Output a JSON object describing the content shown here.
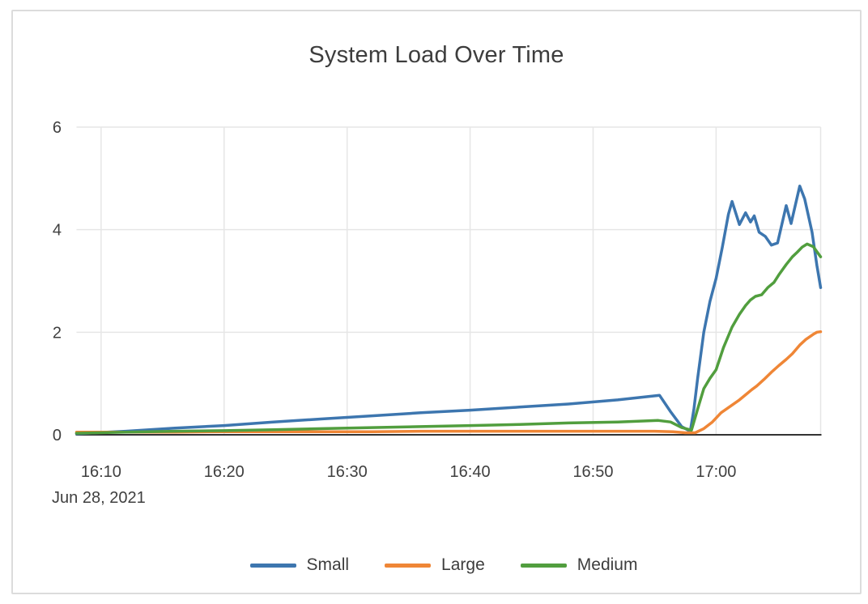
{
  "page": {
    "background": "#ffffff",
    "border_color": "#dcdcdc"
  },
  "colors": {
    "title_text": "#3d3d3d",
    "tick_text": "#3f3f3f",
    "gridline": "#e6e6e6",
    "axis_line": "#333333"
  },
  "chart_data": {
    "type": "line",
    "title": "System Load Over Time",
    "grid": true,
    "legend_position": "bottom",
    "x_axis": {
      "date_label": "Jun 28, 2021",
      "tick_labels": [
        "16:10",
        "16:20",
        "16:30",
        "16:40",
        "16:50",
        "17:00"
      ],
      "tick_minutes": [
        10,
        20,
        30,
        40,
        50,
        60
      ],
      "range_minutes": [
        8,
        68.5
      ],
      "unit": "minutes after 16:00 on Jun 28, 2021"
    },
    "y_axis": {
      "tick_labels": [
        "0",
        "2",
        "4",
        "6"
      ],
      "tick_values": [
        0,
        2,
        4,
        6
      ],
      "range": [
        0,
        6
      ]
    },
    "series": [
      {
        "name": "Small",
        "color": "#3d76af",
        "points": [
          [
            8,
            0.02
          ],
          [
            12,
            0.07
          ],
          [
            16,
            0.13
          ],
          [
            20,
            0.18
          ],
          [
            24,
            0.25
          ],
          [
            28,
            0.31
          ],
          [
            32,
            0.37
          ],
          [
            36,
            0.43
          ],
          [
            40,
            0.48
          ],
          [
            44,
            0.54
          ],
          [
            48,
            0.6
          ],
          [
            52,
            0.68
          ],
          [
            55.4,
            0.77
          ],
          [
            56.3,
            0.45
          ],
          [
            57.2,
            0.16
          ],
          [
            57.9,
            0.07
          ],
          [
            58.2,
            0.5
          ],
          [
            58.5,
            1.1
          ],
          [
            59,
            2.0
          ],
          [
            59.5,
            2.6
          ],
          [
            60,
            3.05
          ],
          [
            60.5,
            3.65
          ],
          [
            61,
            4.3
          ],
          [
            61.3,
            4.55
          ],
          [
            61.9,
            4.1
          ],
          [
            62.4,
            4.33
          ],
          [
            62.8,
            4.15
          ],
          [
            63.1,
            4.27
          ],
          [
            63.5,
            3.95
          ],
          [
            64,
            3.87
          ],
          [
            64.5,
            3.7
          ],
          [
            65,
            3.74
          ],
          [
            65.7,
            4.47
          ],
          [
            66.1,
            4.12
          ],
          [
            66.8,
            4.85
          ],
          [
            67.2,
            4.6
          ],
          [
            67.8,
            3.95
          ],
          [
            68.2,
            3.3
          ],
          [
            68.5,
            2.87
          ]
        ]
      },
      {
        "name": "Large",
        "color": "#ef8636",
        "points": [
          [
            8,
            0.05
          ],
          [
            12,
            0.05
          ],
          [
            16,
            0.05
          ],
          [
            20,
            0.06
          ],
          [
            24,
            0.06
          ],
          [
            28,
            0.06
          ],
          [
            32,
            0.06
          ],
          [
            36,
            0.07
          ],
          [
            40,
            0.07
          ],
          [
            44,
            0.07
          ],
          [
            48,
            0.07
          ],
          [
            52,
            0.07
          ],
          [
            55,
            0.07
          ],
          [
            56.5,
            0.06
          ],
          [
            57.5,
            0.04
          ],
          [
            58.3,
            0.04
          ],
          [
            59,
            0.12
          ],
          [
            59.7,
            0.25
          ],
          [
            60.4,
            0.43
          ],
          [
            61.3,
            0.58
          ],
          [
            61.9,
            0.68
          ],
          [
            62.4,
            0.78
          ],
          [
            62.9,
            0.88
          ],
          [
            63.3,
            0.95
          ],
          [
            63.9,
            1.08
          ],
          [
            64.5,
            1.22
          ],
          [
            65.1,
            1.35
          ],
          [
            65.7,
            1.47
          ],
          [
            66.2,
            1.58
          ],
          [
            66.8,
            1.75
          ],
          [
            67.3,
            1.86
          ],
          [
            67.9,
            1.96
          ],
          [
            68.2,
            2.0
          ],
          [
            68.5,
            2.01
          ]
        ]
      },
      {
        "name": "Medium",
        "color": "#519e3e",
        "points": [
          [
            8,
            0.03
          ],
          [
            12,
            0.05
          ],
          [
            16,
            0.07
          ],
          [
            20,
            0.08
          ],
          [
            24,
            0.1
          ],
          [
            28,
            0.12
          ],
          [
            32,
            0.14
          ],
          [
            36,
            0.16
          ],
          [
            40,
            0.18
          ],
          [
            44,
            0.2
          ],
          [
            48,
            0.23
          ],
          [
            52,
            0.25
          ],
          [
            55.3,
            0.28
          ],
          [
            56.3,
            0.25
          ],
          [
            57.2,
            0.14
          ],
          [
            58,
            0.09
          ],
          [
            58.5,
            0.5
          ],
          [
            59,
            0.9
          ],
          [
            59.5,
            1.1
          ],
          [
            60,
            1.27
          ],
          [
            60.6,
            1.7
          ],
          [
            61.3,
            2.1
          ],
          [
            61.9,
            2.35
          ],
          [
            62.4,
            2.52
          ],
          [
            62.8,
            2.63
          ],
          [
            63.2,
            2.7
          ],
          [
            63.7,
            2.73
          ],
          [
            64.2,
            2.87
          ],
          [
            64.7,
            2.97
          ],
          [
            65.1,
            3.12
          ],
          [
            65.7,
            3.32
          ],
          [
            66.2,
            3.47
          ],
          [
            66.6,
            3.56
          ],
          [
            67,
            3.66
          ],
          [
            67.4,
            3.72
          ],
          [
            67.9,
            3.67
          ],
          [
            68.5,
            3.47
          ]
        ]
      }
    ]
  }
}
